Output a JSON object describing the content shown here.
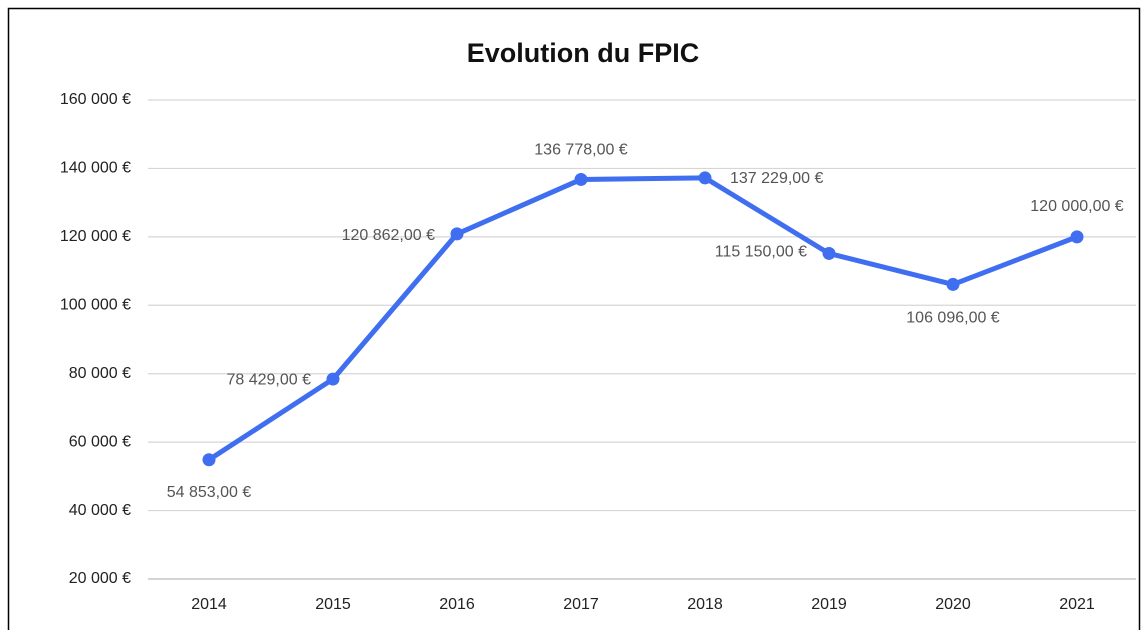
{
  "chart_data": {
    "type": "line",
    "title": "Evolution du FPIC",
    "categories": [
      "2014",
      "2015",
      "2016",
      "2017",
      "2018",
      "2019",
      "2020",
      "2021"
    ],
    "series": [
      {
        "name": "FPIC",
        "color": "#3f6ff0",
        "values": [
          54853,
          78429,
          120862,
          136778,
          137229,
          115150,
          106096,
          120000
        ],
        "value_labels": [
          "54 853,00 €",
          "78 429,00 €",
          "120 862,00 €",
          "136 778,00 €",
          "137 229,00 €",
          "115 150,00 €",
          "106 096,00 €",
          "120 000,00 €"
        ]
      }
    ],
    "ylim": [
      20000,
      160000
    ],
    "yticks": [
      {
        "value": 20000,
        "label": "20 000 €"
      },
      {
        "value": 40000,
        "label": "40 000 €"
      },
      {
        "value": 60000,
        "label": "60 000 €"
      },
      {
        "value": 80000,
        "label": "80 000 €"
      },
      {
        "value": 100000,
        "label": "100 000 €"
      },
      {
        "value": 120000,
        "label": "120 000 €"
      },
      {
        "value": 140000,
        "label": "140 000 €"
      },
      {
        "value": 160000,
        "label": "160 000 €"
      }
    ],
    "grid": true
  }
}
